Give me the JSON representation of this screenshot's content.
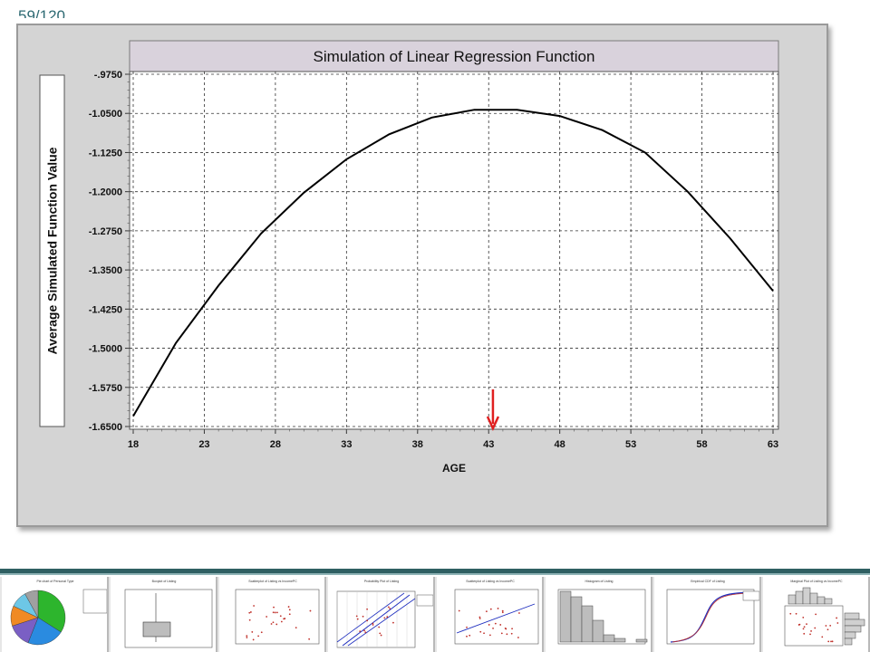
{
  "slide": {
    "number": "59/120"
  },
  "chart_data": {
    "type": "line",
    "title": "Simulation of Linear Regression Function",
    "xlabel": "AGE",
    "ylabel": "Average Simulated Function Value",
    "xlim": [
      18,
      63
    ],
    "ylim": [
      -1.65,
      -0.975
    ],
    "x_ticks": [
      "18",
      "23",
      "28",
      "33",
      "38",
      "43",
      "48",
      "53",
      "58",
      "63"
    ],
    "y_ticks": [
      "-.9750",
      "-1.0500",
      "-1.1250",
      "-1.2000",
      "-1.2750",
      "-1.3500",
      "-1.4250",
      "-1.5000",
      "-1.5750",
      "-1.6500"
    ],
    "grid": true,
    "series": [
      {
        "x": [
          18,
          21,
          24,
          27,
          30,
          33,
          36,
          39,
          42,
          45,
          48,
          51,
          54,
          57,
          60,
          63
        ],
        "y": [
          -1.63,
          -1.49,
          -1.38,
          -1.28,
          -1.202,
          -1.138,
          -1.09,
          -1.058,
          -1.043,
          -1.043,
          -1.055,
          -1.082,
          -1.125,
          -1.2,
          -1.29,
          -1.39
        ]
      }
    ],
    "annotations": [
      {
        "type": "arrow",
        "x": 43.3,
        "color": "#e02020"
      }
    ],
    "colors": {
      "line": "#000000",
      "title_bg": "#d9d2dc",
      "frame_bg": "#d4d4d4"
    }
  },
  "thumbnails": [
    {
      "title": "Pie chart of Personal Type",
      "kind": "pie"
    },
    {
      "title": "Boxplot of Listing",
      "kind": "box"
    },
    {
      "title": "Scatterplot of Listing vs IncomePC",
      "kind": "scatter"
    },
    {
      "title": "Probability Plot of Listing",
      "kind": "prob"
    },
    {
      "title": "Scatterplot of Listing vs IncomePC",
      "kind": "scatterline"
    },
    {
      "title": "Histogram of Listing",
      "kind": "hist"
    },
    {
      "title": "Empirical CDF of Listing",
      "kind": "cdf"
    },
    {
      "title": "Marginal Plot of Listing vs IncomePC",
      "kind": "marginal"
    }
  ]
}
